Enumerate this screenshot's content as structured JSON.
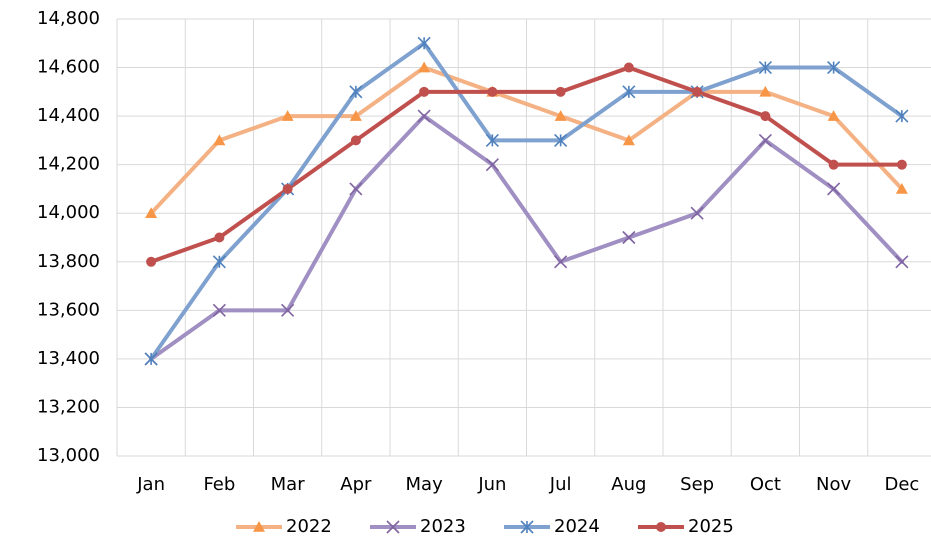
{
  "chart_data": {
    "type": "line",
    "categories": [
      "Jan",
      "Feb",
      "Mar",
      "Apr",
      "May",
      "Jun",
      "Jul",
      "Aug",
      "Sep",
      "Oct",
      "Nov",
      "Dec"
    ],
    "series": [
      {
        "name": "2022",
        "color": "#f4b183",
        "marker_color": "#f79646",
        "marker": "triangle",
        "values": [
          14000,
          14300,
          14400,
          14400,
          14600,
          14500,
          14400,
          14300,
          14500,
          14500,
          14400,
          14100
        ]
      },
      {
        "name": "2023",
        "color": "#a08fc2",
        "marker_color": "#8064a2",
        "marker": "cross",
        "values": [
          13400,
          13600,
          13600,
          14100,
          14400,
          14200,
          13800,
          13900,
          14000,
          14300,
          14100,
          13800
        ]
      },
      {
        "name": "2024",
        "color": "#7ea1cf",
        "marker_color": "#4f81bd",
        "marker": "star",
        "values": [
          13400,
          13800,
          14100,
          14500,
          14700,
          14300,
          14300,
          14500,
          14500,
          14600,
          14600,
          14400
        ]
      },
      {
        "name": "2025",
        "color": "#c0504d",
        "marker_color": "#c0504d",
        "marker": "circle",
        "values": [
          13800,
          13900,
          14100,
          14300,
          14500,
          14500,
          14500,
          14600,
          14500,
          14400,
          14200,
          14200
        ]
      }
    ],
    "ylim": [
      13000,
      14800
    ],
    "yticks": [
      {
        "value": 13000,
        "label": "13,000"
      },
      {
        "value": 13200,
        "label": "13,200"
      },
      {
        "value": 13400,
        "label": "13,400"
      },
      {
        "value": 13600,
        "label": "13,600"
      },
      {
        "value": 13800,
        "label": "13,800"
      },
      {
        "value": 14000,
        "label": "14,000"
      },
      {
        "value": 14200,
        "label": "14,200"
      },
      {
        "value": 14400,
        "label": "14,400"
      },
      {
        "value": 14600,
        "label": "14,600"
      },
      {
        "value": 14800,
        "label": "14,800"
      }
    ],
    "grid": true,
    "legend": "bottom"
  }
}
